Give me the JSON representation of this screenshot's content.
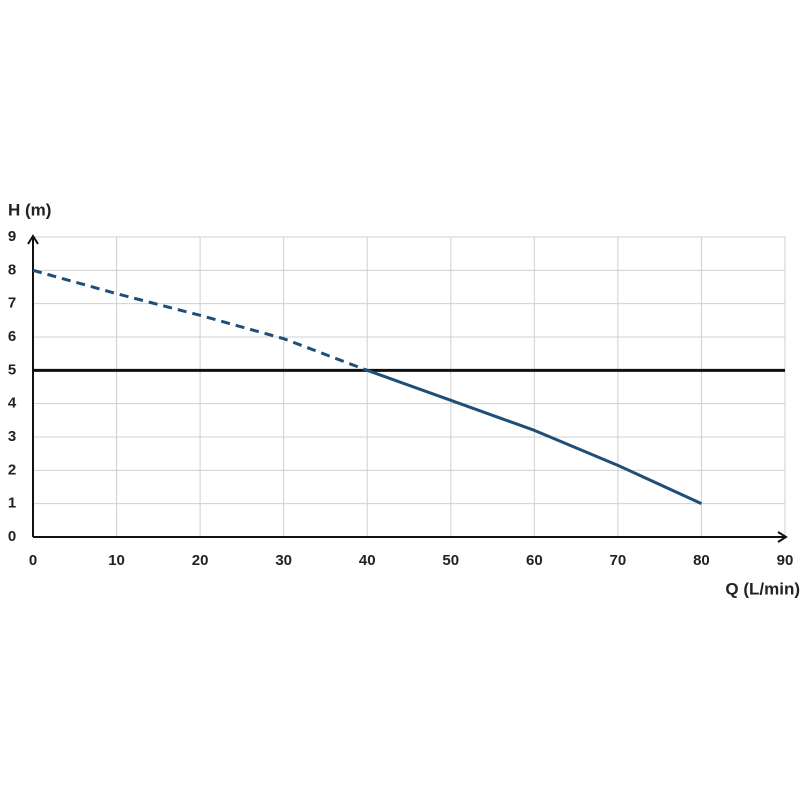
{
  "chart_data": {
    "type": "line",
    "y_label": "H (m)",
    "x_label": "Q (L/min)",
    "x": [
      0,
      10,
      20,
      30,
      40,
      50,
      60,
      70,
      80
    ],
    "series": [
      {
        "color": "#1f4e79",
        "dashed": true,
        "values": [
          8,
          7.3,
          6.65,
          5.95,
          5,
          null,
          null,
          null,
          null
        ]
      },
      {
        "color": "#1f4e79",
        "dashed": false,
        "values": [
          null,
          null,
          null,
          null,
          5,
          4.1,
          3.2,
          2.15,
          1
        ]
      }
    ],
    "reference_line": 5,
    "reference_color": "#111111",
    "xlim": [
      0,
      90
    ],
    "ylim": [
      0,
      9
    ],
    "xticks": [
      0,
      10,
      20,
      30,
      40,
      50,
      60,
      70,
      80,
      90
    ],
    "yticks": [
      0,
      1,
      2,
      3,
      4,
      5,
      6,
      7,
      8,
      9
    ],
    "grid": true
  }
}
